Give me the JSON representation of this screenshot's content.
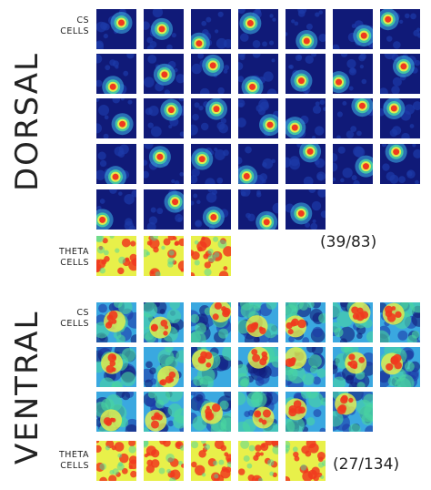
{
  "dorsal": {
    "section_label": "DORSAL",
    "cs_label_line1": "CS",
    "cs_label_line2": "CELLS",
    "theta_label_line1": "THETA",
    "theta_label_line2": "CELLS",
    "count": "(39/83)"
  },
  "ventral": {
    "section_label": "VENTRAL",
    "cs_label_line1": "CS",
    "cs_label_line2": "CELLS",
    "theta_label_line1": "THETA",
    "theta_label_line2": "CELLS",
    "count": "(27/134)"
  },
  "colors": {
    "background": "#101a78",
    "low": "#1c3aa8",
    "mid_low": "#3aa8e0",
    "mid": "#49d6a0",
    "mid_high": "#e8f04a",
    "high": "#f03a1e"
  }
}
